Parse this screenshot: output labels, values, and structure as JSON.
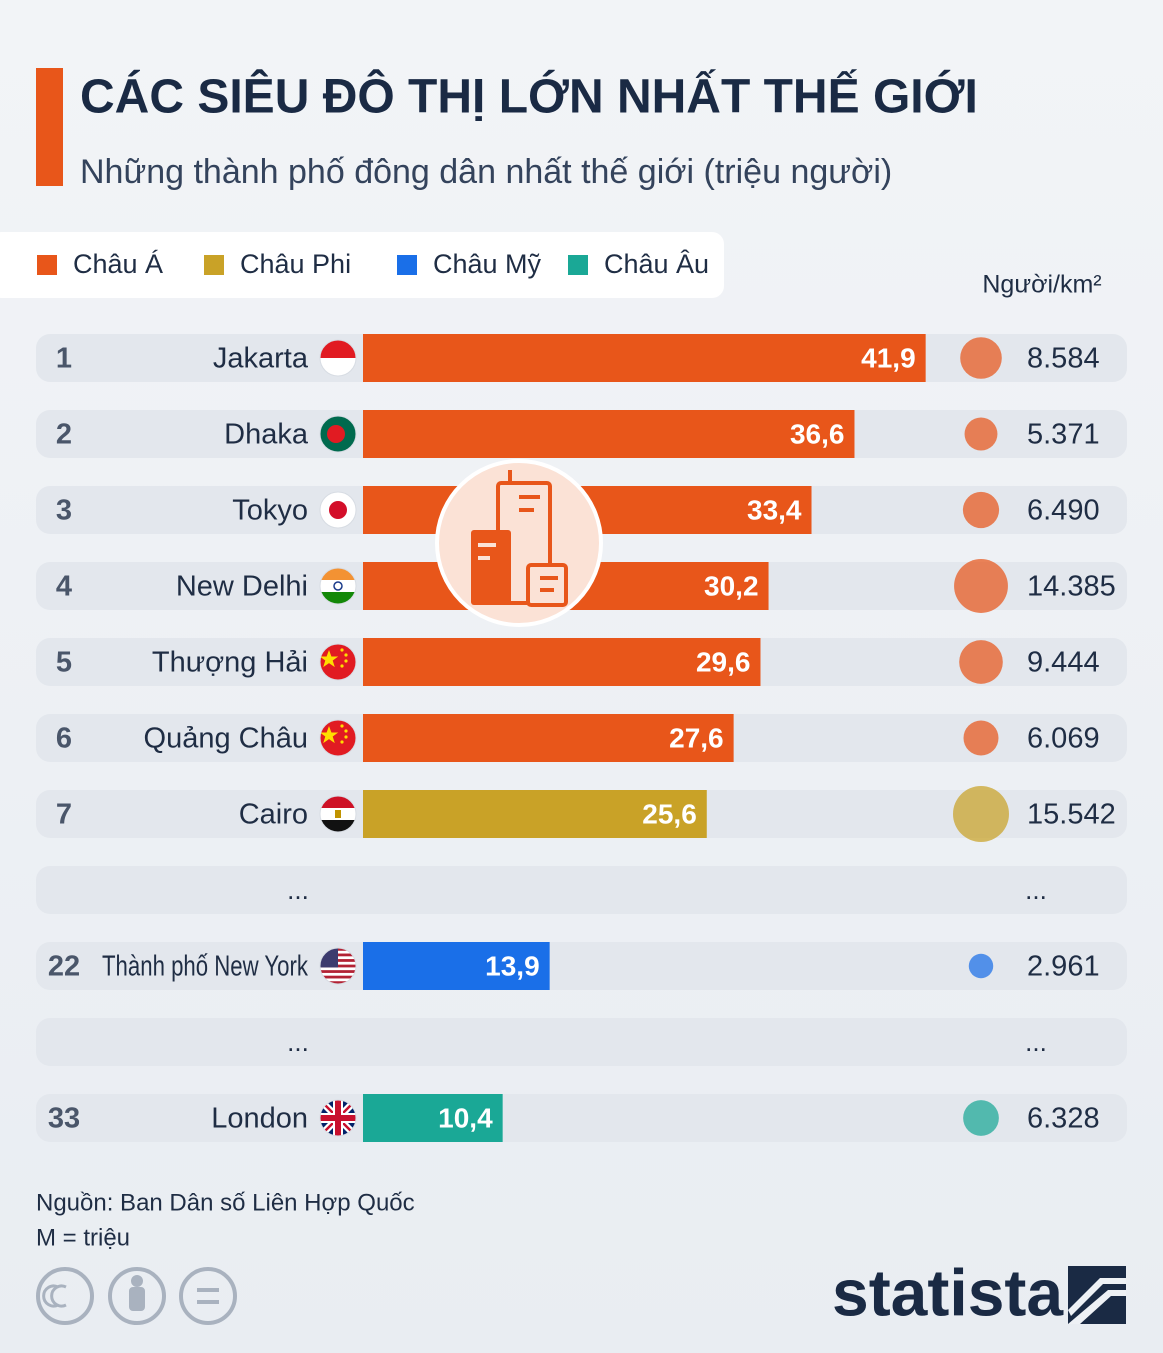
{
  "chart_data": {
    "type": "bar",
    "orientation": "horizontal",
    "title": "CÁC SIÊU ĐÔ THỊ LỚN NHẤT THẾ GIỚI",
    "subtitle": "Những thành phố đông dân nhất thế giới (triệu người)",
    "legend": [
      {
        "name": "Châu Á",
        "color": "#e8561a"
      },
      {
        "name": "Châu Phi",
        "color": "#c9a227"
      },
      {
        "name": "Châu Mỹ",
        "color": "#1a6fe8"
      },
      {
        "name": "Châu Âu",
        "color": "#1aa896"
      }
    ],
    "density_label": "Người/km²",
    "xlim": [
      0,
      42
    ],
    "rows": [
      {
        "rank": 1,
        "city": "Jakarta",
        "group": 0,
        "value": 41.9,
        "value_label": "41,9",
        "density": 8584,
        "density_label": "8.584"
      },
      {
        "rank": 2,
        "city": "Dhaka",
        "group": 0,
        "value": 36.6,
        "value_label": "36,6",
        "density": 5371,
        "density_label": "5.371"
      },
      {
        "rank": 3,
        "city": "Tokyo",
        "group": 0,
        "value": 33.4,
        "value_label": "33,4",
        "density": 6490,
        "density_label": "6.490"
      },
      {
        "rank": 4,
        "city": "New Delhi",
        "group": 0,
        "value": 30.2,
        "value_label": "30,2",
        "density": 14385,
        "density_label": "14.385"
      },
      {
        "rank": 5,
        "city": "Thượng Hải",
        "group": 0,
        "value": 29.6,
        "value_label": "29,6",
        "density": 9444,
        "density_label": "9.444"
      },
      {
        "rank": 6,
        "city": "Quảng Châu",
        "group": 0,
        "value": 27.6,
        "value_label": "27,6",
        "density": 6069,
        "density_label": "6.069"
      },
      {
        "rank": 7,
        "city": "Cairo",
        "group": 1,
        "value": 25.6,
        "value_label": "25,6",
        "density": 15542,
        "density_label": "15.542"
      },
      {
        "left": "...",
        "right": "..."
      },
      {
        "rank": 22,
        "city": "Thành phố New York",
        "group": 2,
        "value": 13.9,
        "value_label": "13,9",
        "density": 2961,
        "density_label": "2.961"
      },
      {
        "left": "...",
        "right": "..."
      },
      {
        "rank": 33,
        "city": "London",
        "group": 3,
        "value": 10.4,
        "value_label": "10,4",
        "density": 6328,
        "density_label": "6.328"
      }
    ],
    "source": "Nguồn: Ban Dân số Liên Hợp Quốc",
    "note": "M = triệu",
    "brand": "statista"
  }
}
